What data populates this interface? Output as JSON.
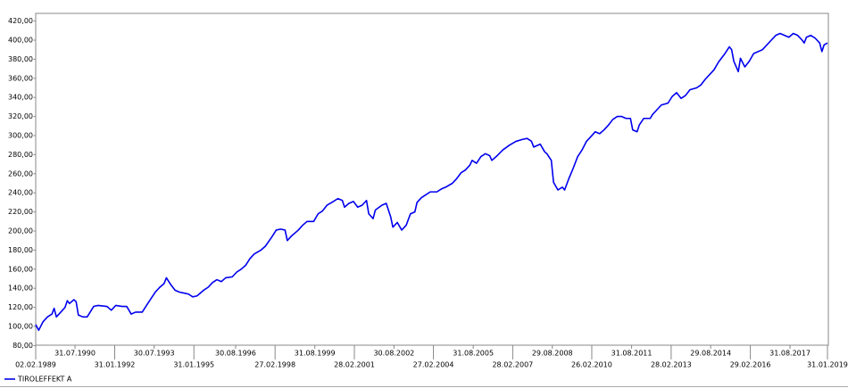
{
  "chart_data": {
    "type": "line",
    "x": [
      "02.02.1989",
      "15.03.1989",
      "15.05.1989",
      "15.07.1989",
      "15.09.1989",
      "15.10.1989",
      "15.11.1989",
      "15.01.1990",
      "15.03.1990",
      "15.04.1990",
      "15.05.1990",
      "15.07.1990",
      "15.08.1990",
      "15.09.1990",
      "15.11.1990",
      "15.01.1991",
      "15.04.1991",
      "15.06.1991",
      "15.10.1991",
      "15.12.1991",
      "15.02.1992",
      "15.05.1992",
      "15.07.1992",
      "15.09.1992",
      "15.11.1992",
      "15.02.1993",
      "15.04.1993",
      "15.06.1993",
      "15.08.1993",
      "15.10.1993",
      "15.12.1993",
      "15.01.1994",
      "15.03.1994",
      "15.05.1994",
      "15.07.1994",
      "15.09.1994",
      "15.11.1994",
      "15.01.1995",
      "15.03.1995",
      "15.06.1995",
      "15.08.1995",
      "15.10.1995",
      "15.12.1995",
      "15.02.1996",
      "15.04.1996",
      "15.07.1996",
      "15.09.1996",
      "15.11.1996",
      "15.01.1997",
      "15.03.1997",
      "15.05.1997",
      "15.08.1997",
      "15.10.1997",
      "15.01.1998",
      "15.03.1998",
      "15.05.1998",
      "15.07.1998",
      "15.08.1998",
      "15.10.1998",
      "15.01.1999",
      "15.03.1999",
      "15.05.1999",
      "15.08.1999",
      "15.10.1999",
      "15.12.1999",
      "15.02.2000",
      "15.05.2000",
      "15.07.2000",
      "15.09.2000",
      "15.10.2000",
      "15.12.2000",
      "15.02.2001",
      "15.04.2001",
      "15.06.2001",
      "15.08.2001",
      "15.09.2001",
      "15.11.2001",
      "15.12.2001",
      "15.03.2002",
      "15.05.2002",
      "15.07.2002",
      "15.08.2002",
      "15.10.2002",
      "15.12.2002",
      "15.02.2003",
      "15.04.2003",
      "15.06.2003",
      "15.07.2003",
      "15.09.2003",
      "15.11.2003",
      "15.01.2004",
      "15.04.2004",
      "15.06.2004",
      "15.08.2004",
      "15.11.2004",
      "15.01.2005",
      "15.03.2005",
      "15.05.2005",
      "15.07.2005",
      "15.08.2005",
      "15.10.2005",
      "15.12.2005",
      "15.02.2006",
      "15.04.2006",
      "15.05.2006",
      "15.07.2006",
      "15.10.2006",
      "15.01.2007",
      "15.04.2007",
      "15.07.2007",
      "15.09.2007",
      "15.11.2007",
      "15.12.2007",
      "15.03.2008",
      "15.05.2008",
      "15.06.2008",
      "15.08.2008",
      "15.09.2008",
      "15.11.2008",
      "15.01.2009",
      "15.02.2009",
      "15.04.2009",
      "15.06.2009",
      "15.08.2009",
      "15.10.2009",
      "15.12.2009",
      "15.02.2010",
      "15.04.2010",
      "15.06.2010",
      "15.08.2010",
      "15.10.2010",
      "15.12.2010",
      "15.02.2011",
      "15.04.2011",
      "15.06.2011",
      "15.08.2011",
      "15.09.2011",
      "15.11.2011",
      "15.12.2011",
      "15.02.2012",
      "15.05.2012",
      "15.06.2012",
      "15.08.2012",
      "15.10.2012",
      "15.01.2013",
      "15.03.2013",
      "15.05.2013",
      "15.07.2013",
      "15.09.2013",
      "15.11.2013",
      "15.02.2014",
      "15.04.2014",
      "15.06.2014",
      "15.08.2014",
      "15.10.2014",
      "15.12.2014",
      "15.03.2015",
      "15.05.2015",
      "15.06.2015",
      "15.07.2015",
      "15.09.2015",
      "15.10.2015",
      "15.12.2015",
      "15.02.2016",
      "15.04.2016",
      "15.06.2016",
      "15.08.2016",
      "15.10.2016",
      "15.12.2016",
      "15.02.2017",
      "15.04.2017",
      "15.06.2017",
      "15.08.2017",
      "15.10.2017",
      "15.12.2017",
      "15.02.2018",
      "15.03.2018",
      "15.04.2018",
      "15.06.2018",
      "15.08.2018",
      "15.10.2018",
      "15.11.2018",
      "15.12.2018",
      "31.01.2019"
    ],
    "series": [
      {
        "name": "TIROLEFFEKT A",
        "color": "#0000ee",
        "values": [
          102,
          96,
          105,
          110,
          113,
          119,
          110,
          115,
          120,
          127,
          124,
          128,
          126,
          112,
          110,
          110,
          121,
          122,
          121,
          117,
          122,
          121,
          121,
          113,
          115,
          115,
          122,
          129,
          136,
          141,
          145,
          151,
          144,
          138,
          136,
          135,
          134,
          131,
          132,
          138,
          141,
          146,
          149,
          147,
          151,
          152,
          157,
          160,
          164,
          171,
          176,
          180,
          184,
          194,
          201,
          202,
          201,
          190,
          195,
          201,
          206,
          210,
          210,
          218,
          221,
          227,
          231,
          234,
          232,
          225,
          229,
          231,
          225,
          227,
          232,
          218,
          213,
          222,
          227,
          229,
          215,
          204,
          209,
          201,
          206,
          218,
          220,
          230,
          235,
          238,
          241,
          241,
          244,
          246,
          250,
          255,
          261,
          264,
          269,
          274,
          271,
          278,
          281,
          279,
          274,
          278,
          285,
          290,
          294,
          296,
          297,
          294,
          288,
          291,
          283,
          281,
          274,
          251,
          243,
          246,
          243,
          255,
          266,
          278,
          285,
          294,
          299,
          304,
          302,
          306,
          311,
          317,
          320,
          320,
          318,
          318,
          306,
          304,
          311,
          318,
          318,
          322,
          327,
          332,
          334,
          341,
          345,
          339,
          342,
          348,
          350,
          353,
          359,
          364,
          369,
          377,
          386,
          393,
          390,
          378,
          367,
          381,
          372,
          378,
          386,
          388,
          390,
          395,
          400,
          405,
          407,
          405,
          403,
          407,
          405,
          400,
          397,
          403,
          405,
          402,
          397,
          388,
          395,
          397
        ]
      }
    ],
    "xlim": [
      "02.02.1989",
      "31.01.2019"
    ],
    "xticks": [
      "02.02.1989",
      "31.07.1990",
      "31.01.1992",
      "30.07.1993",
      "31.01.1995",
      "30.08.1996",
      "27.02.1998",
      "31.08.1999",
      "28.02.2001",
      "30.08.2002",
      "27.02.2004",
      "31.08.2005",
      "28.02.2007",
      "29.08.2008",
      "26.02.2010",
      "31.08.2011",
      "28.02.2013",
      "29.08.2014",
      "29.02.2016",
      "31.08.2017",
      "31.01.2019"
    ],
    "ylim": [
      80,
      420
    ],
    "yticks": [
      {
        "value": 80,
        "label": "80,00"
      },
      {
        "value": 100,
        "label": "100,00"
      },
      {
        "value": 120,
        "label": "120,00"
      },
      {
        "value": 140,
        "label": "140,00"
      },
      {
        "value": 160,
        "label": "160,00"
      },
      {
        "value": 180,
        "label": "180,00"
      },
      {
        "value": 200,
        "label": "200,00"
      },
      {
        "value": 220,
        "label": "220,00"
      },
      {
        "value": 240,
        "label": "240,00"
      },
      {
        "value": 260,
        "label": "260,00"
      },
      {
        "value": 280,
        "label": "280,00"
      },
      {
        "value": 300,
        "label": "300,00"
      },
      {
        "value": 320,
        "label": "320,00"
      },
      {
        "value": 340,
        "label": "340,00"
      },
      {
        "value": 360,
        "label": "360,00"
      },
      {
        "value": 380,
        "label": "380,00"
      },
      {
        "value": 400,
        "label": "400,00"
      },
      {
        "value": 420,
        "label": "420,00"
      }
    ],
    "grid": false
  }
}
